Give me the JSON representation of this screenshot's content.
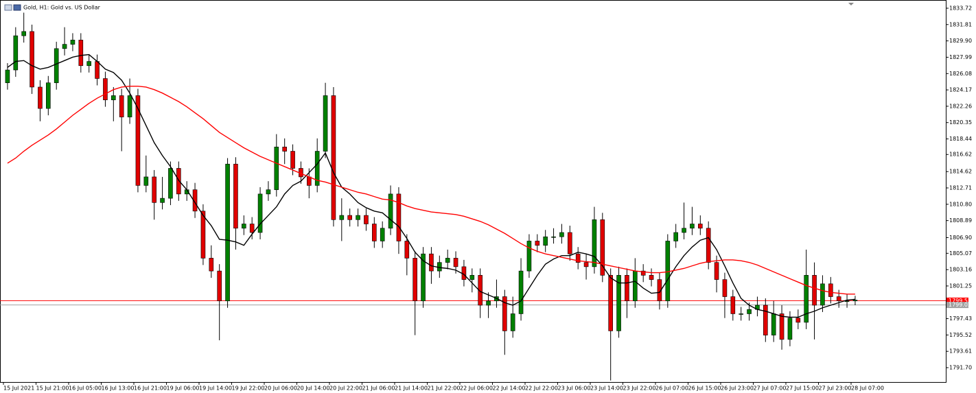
{
  "chart_data": {
    "type": "candlestick",
    "title": "Gold, H1: Gold vs. US Dollar",
    "categories": [
      "15 Jul 2021",
      null,
      null,
      null,
      "15 Jul 21:00",
      null,
      null,
      null,
      "16 Jul 05:00",
      null,
      null,
      null,
      "16 Jul 13:00",
      null,
      null,
      null,
      "16 Jul 21:00",
      null,
      null,
      null,
      "19 Jul 06:00",
      null,
      null,
      null,
      "19 Jul 14:00",
      null,
      null,
      null,
      "19 Jul 22:00",
      null,
      null,
      null,
      "20 Jul 06:00",
      null,
      null,
      null,
      "20 Jul 14:00",
      null,
      null,
      null,
      "20 Jul 22:00",
      null,
      null,
      null,
      "21 Jul 06:00",
      null,
      null,
      null,
      "21 Jul 14:00",
      null,
      null,
      null,
      "21 Jul 22:00",
      null,
      null,
      null,
      "22 Jul 06:00",
      null,
      null,
      null,
      "22 Jul 14:00",
      null,
      null,
      null,
      "22 Jul 22:00",
      null,
      null,
      null,
      "23 Jul 06:00",
      null,
      null,
      null,
      "23 Jul 14:00",
      null,
      null,
      null,
      "23 Jul 22:00",
      null,
      null,
      null,
      "26 Jul 07:00",
      null,
      null,
      null,
      "26 Jul 15:00",
      null,
      null,
      null,
      "26 Jul 23:00",
      null,
      null,
      null,
      "27 Jul 07:00",
      null,
      null,
      null,
      "27 Jul 15:00",
      null,
      null,
      null,
      "27 Jul 23:00",
      null,
      null,
      null,
      "28 Jul 07:00"
    ],
    "open": [
      1825.0,
      1826.5,
      1830.5,
      1831.0,
      1824.5,
      1822.0,
      1825.0,
      1829.0,
      1829.5,
      1830.0,
      1827.0,
      1827.5,
      1825.5,
      1823.0,
      1823.5,
      1821.0,
      1823.5,
      1813.0,
      1814.0,
      1811.0,
      1811.5,
      1815.0,
      1812.0,
      1812.5,
      1810.0,
      1804.5,
      1803.0,
      1799.5,
      1815.5,
      1808.0,
      1808.5,
      1807.5,
      1812.0,
      1812.5,
      1817.5,
      1817.0,
      1815.0,
      1814.0,
      1813.0,
      1817.0,
      1823.5,
      1809.0,
      1809.5,
      1809.0,
      1809.5,
      1808.5,
      1806.5,
      1808.0,
      1812.0,
      1806.5,
      1804.5,
      1799.5,
      1805.0,
      1803.0,
      1804.0,
      1804.5,
      1803.5,
      1802.0,
      1802.5,
      1799.0,
      1799.5,
      1800.0,
      1796.0,
      1798.0,
      1803.0,
      1806.5,
      1806.0,
      1807.0,
      1807.0,
      1807.5,
      1805.0,
      1804.0,
      1803.5,
      1809.0,
      1802.5,
      1796.0,
      1802.5,
      1799.5,
      1803.0,
      1802.5,
      1802.0,
      1799.5,
      1806.5,
      1807.5,
      1808.0,
      1808.5,
      1808.0,
      1804.0,
      1802.0,
      1800.0,
      1798.0,
      1798.0,
      1798.5,
      1799.0,
      1795.5,
      1798.0,
      1795.0,
      1797.5,
      1797.0,
      1802.5,
      1799.0,
      1801.5,
      1800.0,
      1799.5,
      1799.5
    ],
    "high": [
      1827.3,
      1831.5,
      1833.2,
      1831.8,
      1825.3,
      1825.8,
      1829.8,
      1831.5,
      1830.8,
      1830.8,
      1828.3,
      1828.3,
      1826.3,
      1824.5,
      1824.3,
      1825.5,
      1824.3,
      1816.5,
      1814.8,
      1814.0,
      1815.8,
      1815.8,
      1813.5,
      1813.3,
      1810.8,
      1806.0,
      1803.8,
      1816.2,
      1816.3,
      1809.5,
      1809.3,
      1812.8,
      1813.5,
      1819.0,
      1818.5,
      1817.8,
      1815.8,
      1815.0,
      1818.5,
      1825.0,
      1824.5,
      1811.5,
      1810.3,
      1810.3,
      1810.3,
      1809.3,
      1808.8,
      1813.0,
      1812.8,
      1807.3,
      1805.3,
      1805.8,
      1805.8,
      1804.8,
      1805.5,
      1805.3,
      1804.3,
      1803.3,
      1803.3,
      1800.5,
      1802.0,
      1800.8,
      1800.0,
      1804.5,
      1807.3,
      1807.3,
      1807.8,
      1808.0,
      1808.5,
      1808.3,
      1805.8,
      1805.0,
      1810.5,
      1809.8,
      1803.3,
      1803.5,
      1803.3,
      1804.5,
      1803.8,
      1803.3,
      1802.8,
      1807.3,
      1808.5,
      1811.0,
      1810.5,
      1809.5,
      1808.8,
      1804.8,
      1802.8,
      1800.8,
      1798.8,
      1799.3,
      1800.0,
      1799.8,
      1799.5,
      1799.0,
      1798.3,
      1798.5,
      1805.5,
      1804.0,
      1802.5,
      1802.3,
      1800.8,
      1800.3,
      1800.1
    ],
    "low": [
      1824.2,
      1825.7,
      1829.7,
      1823.7,
      1820.5,
      1821.2,
      1824.2,
      1828.2,
      1828.7,
      1826.2,
      1826.2,
      1824.7,
      1822.2,
      1820.5,
      1817.0,
      1820.2,
      1812.2,
      1812.2,
      1809.0,
      1810.2,
      1810.7,
      1811.2,
      1811.2,
      1809.2,
      1803.7,
      1802.2,
      1794.9,
      1798.7,
      1805.5,
      1807.2,
      1806.7,
      1806.7,
      1811.2,
      1811.7,
      1815.5,
      1814.2,
      1813.2,
      1811.5,
      1812.2,
      1816.2,
      1808.2,
      1806.5,
      1808.2,
      1808.2,
      1807.7,
      1805.7,
      1805.7,
      1807.2,
      1805.0,
      1802.5,
      1795.5,
      1798.7,
      1801.5,
      1802.2,
      1803.2,
      1802.7,
      1801.2,
      1800.5,
      1797.5,
      1797.5,
      1798.7,
      1793.2,
      1795.2,
      1797.2,
      1802.2,
      1805.2,
      1805.2,
      1806.2,
      1806.2,
      1804.2,
      1803.2,
      1802.0,
      1802.7,
      1801.7,
      1790.2,
      1795.2,
      1797.5,
      1798.7,
      1801.7,
      1801.2,
      1798.5,
      1798.7,
      1805.7,
      1806.7,
      1807.2,
      1807.2,
      1803.2,
      1800.5,
      1797.5,
      1797.2,
      1797.2,
      1797.2,
      1797.7,
      1794.7,
      1794.7,
      1793.8,
      1794.2,
      1796.2,
      1796.2,
      1795.0,
      1798.2,
      1799.2,
      1798.7,
      1798.7,
      1799.0
    ],
    "close": [
      1826.5,
      1830.5,
      1831.0,
      1824.5,
      1822.0,
      1825.0,
      1829.0,
      1829.5,
      1830.0,
      1827.0,
      1827.5,
      1825.5,
      1823.0,
      1823.5,
      1821.0,
      1823.5,
      1813.0,
      1814.0,
      1811.0,
      1811.5,
      1815.0,
      1812.0,
      1812.5,
      1810.0,
      1804.5,
      1803.0,
      1799.5,
      1815.5,
      1808.0,
      1808.5,
      1807.5,
      1812.0,
      1812.5,
      1817.5,
      1817.0,
      1815.0,
      1814.0,
      1813.0,
      1817.0,
      1823.5,
      1809.0,
      1809.5,
      1809.0,
      1809.5,
      1808.5,
      1806.5,
      1808.0,
      1812.0,
      1806.5,
      1804.5,
      1799.5,
      1805.0,
      1803.0,
      1804.0,
      1804.5,
      1803.5,
      1802.0,
      1802.5,
      1799.0,
      1799.5,
      1800.0,
      1796.0,
      1798.0,
      1803.0,
      1806.5,
      1806.0,
      1807.0,
      1807.0,
      1807.5,
      1805.0,
      1804.0,
      1803.5,
      1809.0,
      1802.5,
      1796.0,
      1802.5,
      1799.5,
      1803.0,
      1802.5,
      1802.0,
      1799.5,
      1806.5,
      1807.5,
      1808.0,
      1808.5,
      1808.0,
      1804.0,
      1802.0,
      1800.0,
      1798.0,
      1798.0,
      1798.5,
      1799.0,
      1795.5,
      1798.0,
      1795.0,
      1797.5,
      1797.0,
      1802.5,
      1799.0,
      1801.5,
      1800.0,
      1799.5,
      1799.5,
      1799.6
    ],
    "up_color": "#008000",
    "down_color": "#e00000",
    "lines": [
      {
        "color": "#000000",
        "values": [
          1826.8,
          1827.5,
          1827.6,
          1827.0,
          1826.6,
          1826.8,
          1827.2,
          1827.6,
          1828.0,
          1828.2,
          1828.3,
          1827.5,
          1826.6,
          1826.2,
          1825.3,
          1823.8,
          1822.0,
          1820.0,
          1818.0,
          1816.5,
          1815.2,
          1813.6,
          1812.5,
          1811.0,
          1809.5,
          1808.3,
          1806.7,
          1806.6,
          1806.4,
          1806.0,
          1807.3,
          1808.5,
          1809.5,
          1810.5,
          1812.0,
          1813.0,
          1813.5,
          1814.5,
          1815.5,
          1816.8,
          1814.5,
          1812.8,
          1812.0,
          1811.0,
          1810.4,
          1810.0,
          1809.8,
          1809.0,
          1808.2,
          1806.8,
          1805.2,
          1804.2,
          1803.6,
          1803.4,
          1803.3,
          1803.1,
          1802.6,
          1801.6,
          1800.6,
          1800.2,
          1799.8,
          1799.3,
          1799.0,
          1799.5,
          1801.0,
          1802.5,
          1803.8,
          1804.4,
          1804.8,
          1804.8,
          1805.2,
          1805.0,
          1804.7,
          1803.6,
          1802.2,
          1801.6,
          1801.6,
          1801.8,
          1801.0,
          1800.4,
          1800.5,
          1802.0,
          1803.5,
          1804.8,
          1805.8,
          1806.6,
          1806.9,
          1805.5,
          1803.6,
          1801.6,
          1799.8,
          1799.0,
          1798.5,
          1798.3,
          1798.0,
          1797.7,
          1797.6,
          1797.6,
          1798.0,
          1798.3,
          1798.7,
          1799.0,
          1799.3,
          1799.6,
          1799.7
        ]
      },
      {
        "color": "#ff0000",
        "values": [
          1815.6,
          1816.2,
          1817.0,
          1817.7,
          1818.3,
          1818.9,
          1819.6,
          1820.4,
          1821.2,
          1821.9,
          1822.6,
          1823.2,
          1823.7,
          1824.2,
          1824.5,
          1824.6,
          1824.6,
          1824.5,
          1824.2,
          1823.8,
          1823.3,
          1822.8,
          1822.2,
          1821.5,
          1820.8,
          1820.0,
          1819.2,
          1818.6,
          1818.0,
          1817.4,
          1816.9,
          1816.4,
          1816.0,
          1815.6,
          1815.2,
          1814.8,
          1814.4,
          1814.0,
          1813.6,
          1813.4,
          1813.1,
          1812.8,
          1812.5,
          1812.2,
          1812.0,
          1811.7,
          1811.4,
          1811.3,
          1811.0,
          1810.6,
          1810.3,
          1810.1,
          1809.9,
          1809.8,
          1809.7,
          1809.6,
          1809.4,
          1809.1,
          1808.8,
          1808.4,
          1807.9,
          1807.4,
          1806.8,
          1806.2,
          1805.7,
          1805.3,
          1805.0,
          1804.8,
          1804.6,
          1804.4,
          1804.2,
          1804.1,
          1804.0,
          1803.8,
          1803.6,
          1803.4,
          1803.2,
          1803.0,
          1802.9,
          1802.8,
          1802.8,
          1802.9,
          1803.1,
          1803.3,
          1803.6,
          1803.9,
          1804.1,
          1804.2,
          1804.3,
          1804.3,
          1804.2,
          1804.0,
          1803.7,
          1803.3,
          1802.9,
          1802.5,
          1802.1,
          1801.7,
          1801.3,
          1801.0,
          1800.7,
          1800.5,
          1800.4,
          1800.3,
          1800.3
        ]
      }
    ],
    "price_lines": [
      {
        "value": 1799.53,
        "color": "#ff0000"
      },
      {
        "value": 1799.03,
        "color": "#a0a0a0"
      }
    ],
    "ylim": [
      1790.02,
      1834.68
    ],
    "yticks": [
      1833.72,
      1831.81,
      {
        "value": 1829.9,
        "label": "1829.90"
      },
      1827.99,
      1826.08,
      1824.17,
      1822.26,
      1820.35,
      1818.44,
      1816.62,
      1814.62,
      1812.71,
      {
        "value": 1810.8,
        "label": "1810.80"
      },
      1808.89,
      {
        "value": 1806.9,
        "label": "1806.90"
      },
      1805.07,
      1803.16,
      1801.25,
      1797.43,
      1795.52,
      1793.61,
      {
        "value": 1791.7,
        "label": "1791.70"
      }
    ]
  }
}
